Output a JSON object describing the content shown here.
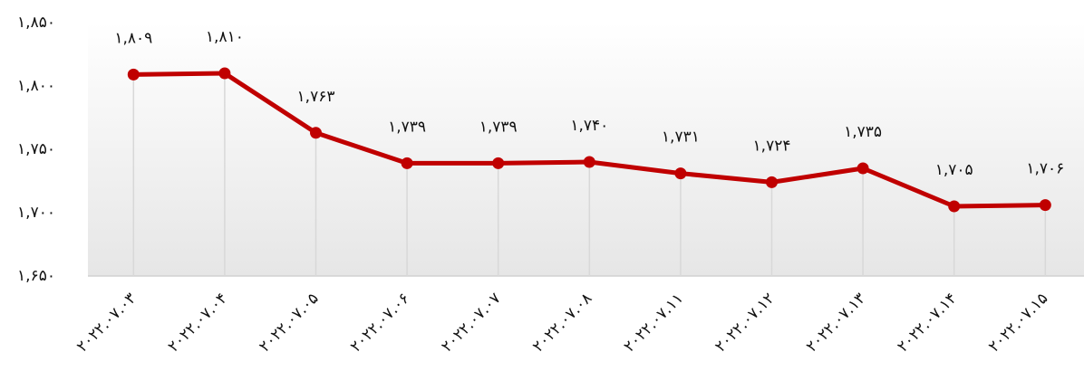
{
  "chart_data": {
    "type": "line",
    "categories": [
      "۲۰۲۲.۰۷.۰۳",
      "۲۰۲۲.۰۷.۰۴",
      "۲۰۲۲.۰۷.۰۵",
      "۲۰۲۲.۰۷.۰۶",
      "۲۰۲۲.۰۷.۰۷",
      "۲۰۲۲.۰۷.۰۸",
      "۲۰۲۲.۰۷.۱۱",
      "۲۰۲۲.۰۷.۱۲",
      "۲۰۲۲.۰۷.۱۳",
      "۲۰۲۲.۰۷.۱۴",
      "۲۰۲۲.۰۷.۱۵"
    ],
    "values": [
      1809,
      1810,
      1763,
      1739,
      1739,
      1740,
      1731,
      1724,
      1735,
      1705,
      1706
    ],
    "value_labels": [
      "۱,۸۰۹",
      "۱,۸۱۰",
      "۱,۷۶۳",
      "۱,۷۳۹",
      "۱,۷۳۹",
      "۱,۷۴۰",
      "۱,۷۳۱",
      "۱,۷۲۴",
      "۱,۷۳۵",
      "۱,۷۰۵",
      "۱,۷۰۶"
    ],
    "color": "#c00000",
    "ylim": [
      1650,
      1850
    ],
    "yticks": [
      {
        "value": 1650,
        "label": "۱,۶۵۰"
      },
      {
        "value": 1700,
        "label": "۱,۷۰۰"
      },
      {
        "value": 1750,
        "label": "۱,۷۵۰"
      },
      {
        "value": 1800,
        "label": "۱,۸۰۰"
      },
      {
        "value": 1850,
        "label": "۱,۸۵۰"
      }
    ]
  }
}
